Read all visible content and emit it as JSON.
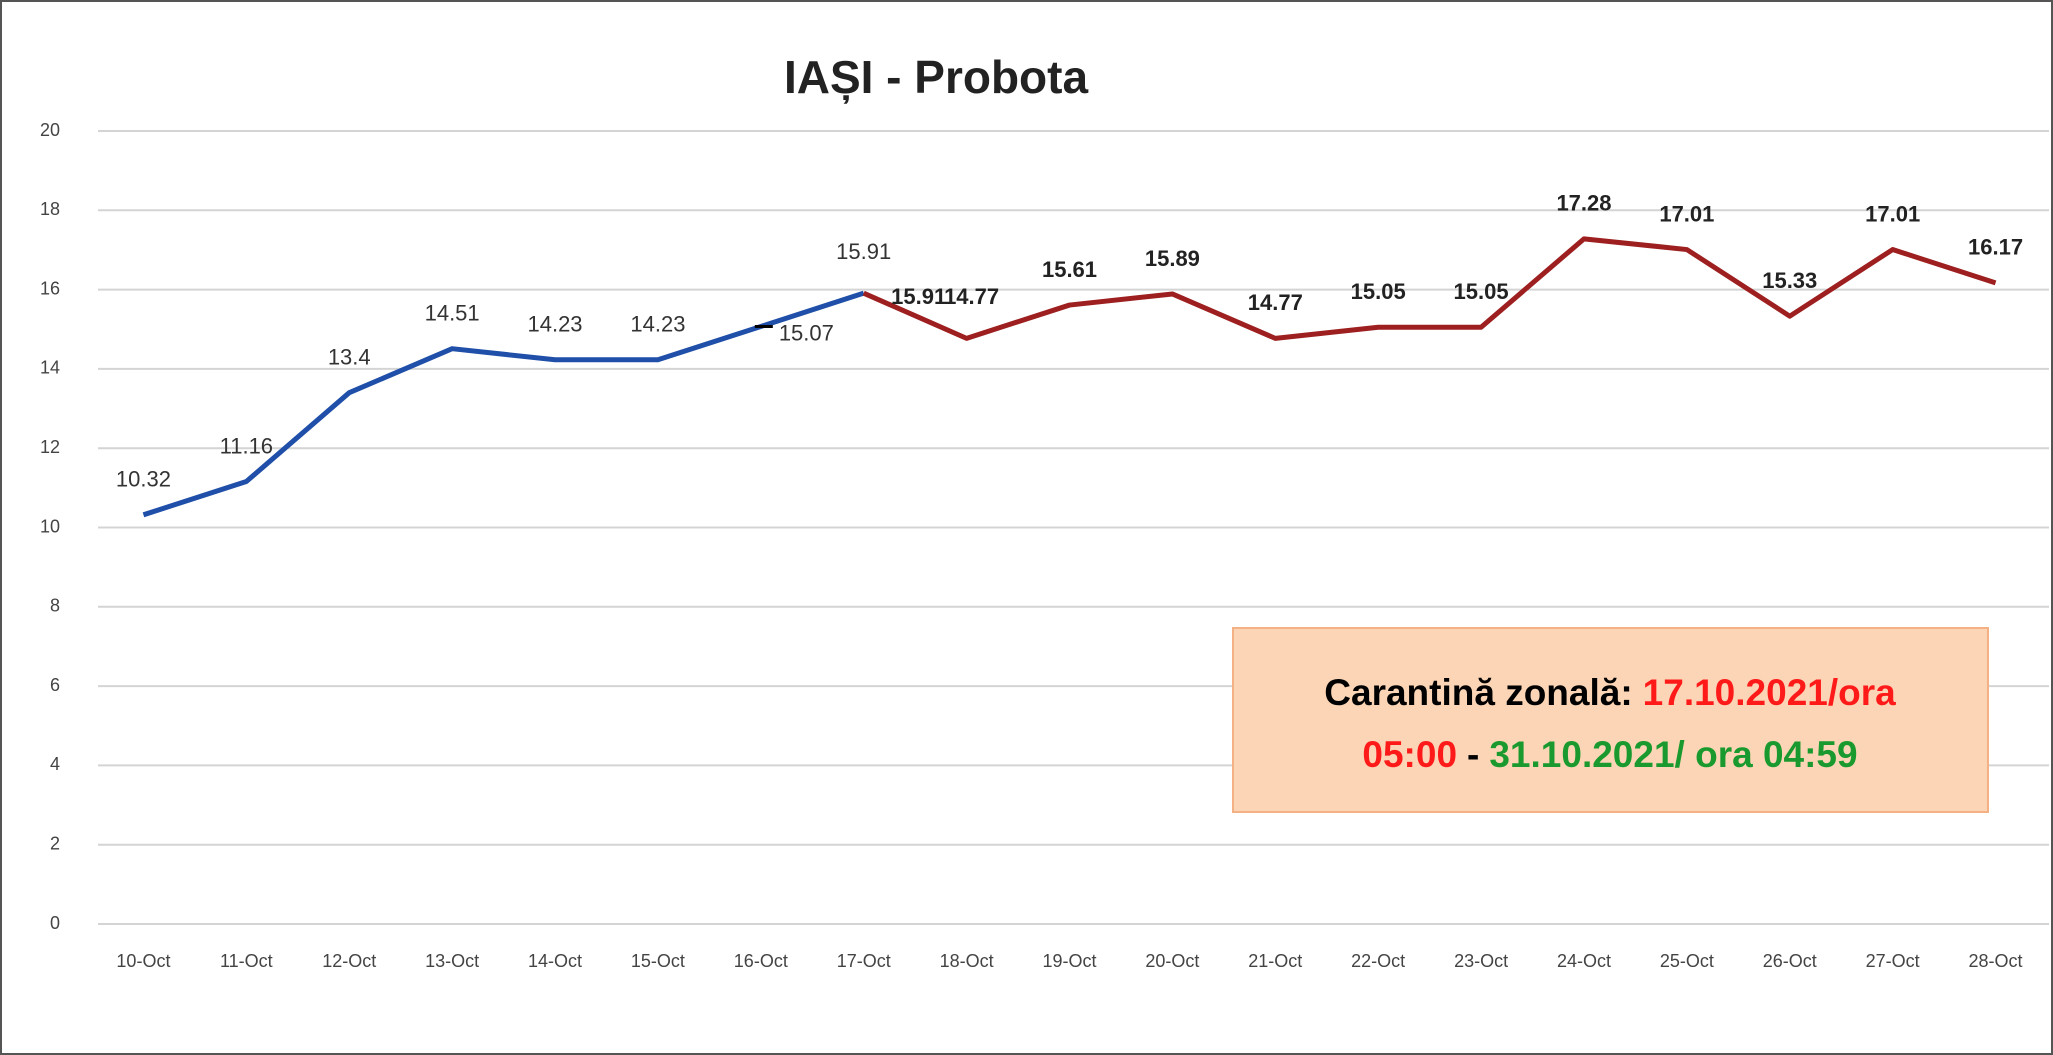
{
  "chart_data": {
    "type": "line",
    "title": "IAȘI - Probota",
    "categories": [
      "10-Oct",
      "11-Oct",
      "12-Oct",
      "13-Oct",
      "14-Oct",
      "15-Oct",
      "16-Oct",
      "17-Oct",
      "18-Oct",
      "19-Oct",
      "20-Oct",
      "21-Oct",
      "22-Oct",
      "23-Oct",
      "24-Oct",
      "25-Oct",
      "26-Oct",
      "27-Oct",
      "28-Oct"
    ],
    "series": [
      {
        "color": "#1f4fa8",
        "values": [
          10.32,
          11.16,
          13.4,
          14.51,
          14.23,
          14.23,
          15.07,
          15.91,
          null,
          null,
          null,
          null,
          null,
          null,
          null,
          null,
          null,
          null,
          null
        ]
      },
      {
        "color": "#9e1f1f",
        "values": [
          null,
          null,
          null,
          null,
          null,
          null,
          null,
          15.91,
          14.77,
          15.61,
          15.89,
          14.77,
          15.05,
          15.05,
          17.28,
          17.01,
          15.33,
          17.01,
          16.17
        ]
      }
    ],
    "ylim": [
      0,
      20
    ],
    "yticks": [
      0,
      2,
      4,
      6,
      8,
      10,
      12,
      14,
      16,
      18,
      20
    ],
    "grid": true,
    "annotation": {
      "lines": [
        [
          {
            "text": "Carantină zonală:",
            "color": "#000000"
          },
          {
            "text": "17.10.2021/ora",
            "color": "#ff1a1a"
          }
        ],
        [
          {
            "text": "05:00",
            "color": "#ff1a1a"
          },
          {
            "text": "-",
            "color": "#000000"
          },
          {
            "text": "31.10.2021/ ora 04:59",
            "color": "#1a9a2e"
          }
        ]
      ],
      "background": "#fbd5b5"
    }
  }
}
